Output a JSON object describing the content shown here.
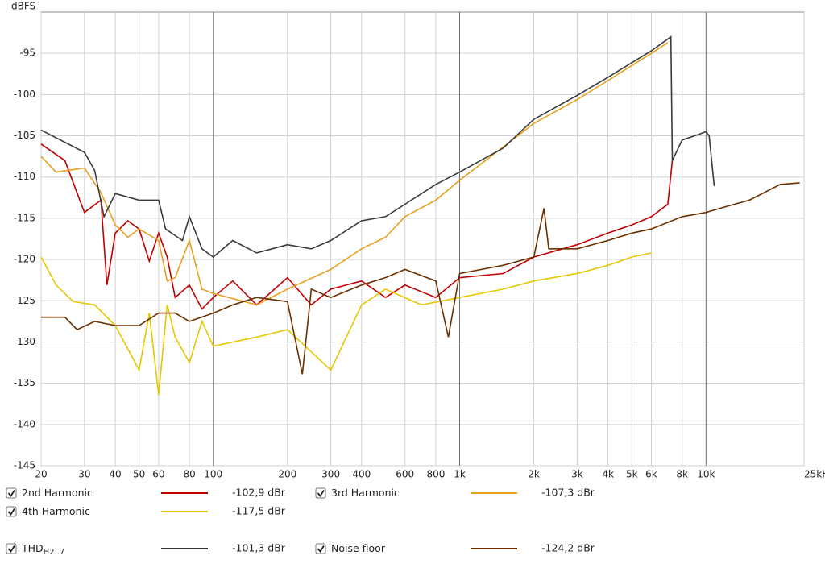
{
  "chart_data": {
    "type": "line",
    "y_axis_label": "dBFS",
    "log_x": true,
    "grid": true,
    "xlim": [
      20,
      25000
    ],
    "ylim": [
      -145,
      -90
    ],
    "xticks": [
      20,
      30,
      40,
      50,
      60,
      80,
      100,
      200,
      300,
      400,
      600,
      800,
      {
        "value": 1000,
        "label": "1k"
      },
      {
        "value": 2000,
        "label": "2k"
      },
      {
        "value": 3000,
        "label": "3k"
      },
      {
        "value": 4000,
        "label": "4k"
      },
      {
        "value": 5000,
        "label": "5k"
      },
      {
        "value": 6000,
        "label": "6k"
      },
      {
        "value": 8000,
        "label": "8k"
      },
      {
        "value": 10000,
        "label": "10k"
      },
      {
        "value": 25000,
        "label": "25kHz"
      }
    ],
    "yticks": [
      -95,
      -100,
      -105,
      -110,
      -115,
      -120,
      -125,
      -130,
      -135,
      -140,
      -145
    ],
    "series": [
      {
        "name": "2nd Harmonic",
        "color": "#c00000",
        "reading": "-102,9 dBr",
        "x": [
          20,
          25,
          30,
          35,
          37,
          40,
          45,
          50,
          55,
          60,
          65,
          70,
          80,
          90,
          100,
          120,
          150,
          200,
          250,
          300,
          400,
          500,
          600,
          800,
          1000,
          1500,
          2000,
          3000,
          4000,
          5000,
          6000,
          7000,
          7300
        ],
        "values": [
          -106,
          -108,
          -114.3,
          -112.8,
          -123.1,
          -116.8,
          -115.3,
          -116.3,
          -120.2,
          -116.8,
          -119.7,
          -124.6,
          -123.1,
          -126,
          -124.6,
          -122.6,
          -125.5,
          -122.2,
          -125.5,
          -123.6,
          -122.6,
          -124.6,
          -123.1,
          -124.6,
          -122.2,
          -121.7,
          -119.7,
          -118.2,
          -116.8,
          -115.8,
          -114.8,
          -113.3,
          -108
        ]
      },
      {
        "name": "3rd Harmonic",
        "color": "#e8a020",
        "reading": "-107,3 dBr",
        "x": [
          20,
          23,
          30,
          35,
          40,
          45,
          50,
          60,
          65,
          70,
          80,
          90,
          100,
          150,
          200,
          300,
          400,
          500,
          600,
          800,
          1000,
          2000,
          3000,
          4000,
          6000,
          7000
        ],
        "values": [
          -107.5,
          -109.4,
          -108.9,
          -111.9,
          -115.8,
          -117.3,
          -116.3,
          -117.7,
          -122.6,
          -122.2,
          -117.7,
          -123.6,
          -124.1,
          -125.5,
          -123.6,
          -121.2,
          -118.7,
          -117.3,
          -114.8,
          -112.8,
          -110.4,
          -103.5,
          -100.6,
          -98.3,
          -95,
          -93.7
        ]
      },
      {
        "name": "4th Harmonic",
        "color": "#e6c800",
        "reading": "-117,5 dBr",
        "x": [
          20,
          23,
          27,
          33,
          40,
          50,
          55,
          60,
          65,
          70,
          80,
          90,
          100,
          150,
          200,
          300,
          400,
          500,
          700,
          1000,
          1500,
          2000,
          3000,
          4000,
          5000,
          6000
        ],
        "values": [
          -119.7,
          -123.1,
          -125.1,
          -125.5,
          -128,
          -133.4,
          -126.5,
          -136.4,
          -125.5,
          -129.4,
          -132.5,
          -127.5,
          -130.5,
          -129.4,
          -128.5,
          -133.4,
          -125.5,
          -123.6,
          -125.5,
          -124.6,
          -123.6,
          -122.6,
          -121.7,
          -120.7,
          -119.7,
          -119.2
        ]
      },
      {
        "name": "THD",
        "name_sub": "H2..7",
        "color": "#3a3a3a",
        "reading": "-101,3 dBr",
        "x": [
          20,
          30,
          33,
          36,
          40,
          50,
          60,
          64,
          75,
          80,
          90,
          100,
          120,
          150,
          200,
          250,
          300,
          400,
          500,
          600,
          800,
          1000,
          1500,
          2000,
          3000,
          4000,
          6000,
          7200,
          7300,
          8000,
          9000,
          10000,
          10300,
          10800
        ],
        "values": [
          -104.3,
          -107,
          -109.2,
          -114.8,
          -112,
          -112.8,
          -112.8,
          -116.3,
          -117.7,
          -114.8,
          -118.7,
          -119.7,
          -117.7,
          -119.2,
          -118.2,
          -118.7,
          -117.7,
          -115.3,
          -114.8,
          -113.3,
          -110.9,
          -109.4,
          -106.5,
          -103,
          -100.1,
          -97.9,
          -94.7,
          -93,
          -108,
          -105.5,
          -105,
          -104.5,
          -105,
          -111.1
        ]
      },
      {
        "name": "Noise floor",
        "color": "#6b3000",
        "reading": "-124,2 dBr",
        "x": [
          20,
          25,
          28,
          33,
          40,
          50,
          60,
          70,
          80,
          100,
          120,
          150,
          200,
          230,
          250,
          300,
          400,
          500,
          600,
          800,
          900,
          1000,
          1500,
          2000,
          2200,
          2300,
          3000,
          4000,
          5000,
          6000,
          8000,
          10000,
          12000,
          15000,
          20000,
          24000
        ],
        "values": [
          -127,
          -127,
          -128.5,
          -127.5,
          -128,
          -128,
          -126.5,
          -126.5,
          -127.5,
          -126.5,
          -125.5,
          -124.6,
          -125.1,
          -133.9,
          -123.6,
          -124.6,
          -123.1,
          -122.2,
          -121.2,
          -122.6,
          -129.4,
          -121.7,
          -120.7,
          -119.7,
          -113.8,
          -118.7,
          -118.7,
          -117.7,
          -116.8,
          -116.3,
          -114.8,
          -114.3,
          -113.6,
          -112.8,
          -110.9,
          -110.7
        ]
      }
    ]
  }
}
